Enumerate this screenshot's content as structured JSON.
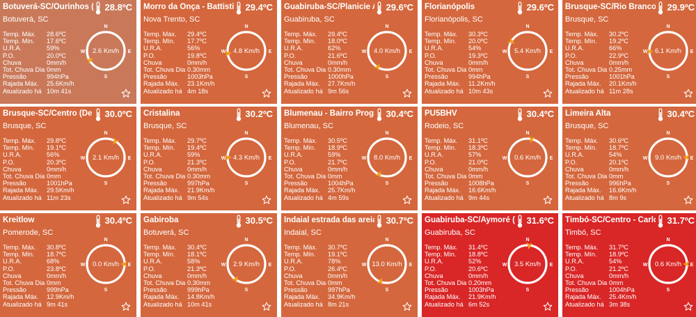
{
  "labels": {
    "temp_max": "Temp. Máx.",
    "temp_min": "Temp. Mín.",
    "ura": "U.R.A.",
    "po": "P.O.",
    "chuva": "Chuva",
    "tot_chuva": "Tot. Chuva Dia",
    "pressao": "Pressão",
    "rajada": "Rajada Máx.",
    "atualizado": "Atualizado há",
    "compass_n": "N",
    "compass_s": "S",
    "compass_w": "W",
    "compass_e": "E"
  },
  "colors": {
    "orange_dark": "#c9552f",
    "orange_light": "#d4673d",
    "red": "#d92626",
    "arrow": "#f4a21b",
    "compass_ring": "#ffffff"
  },
  "icons": {
    "thermometer": "thermometer-icon",
    "star": "star-outline-icon"
  },
  "stations": [
    {
      "name": "Botuverá-SC/Ourinhos (De",
      "location": "Botuverá, SC",
      "temp": "28.8ºC",
      "temp_max": "28.6ºC",
      "temp_min": "17.6ºC",
      "ura": "59%",
      "po": "20.0ºC",
      "chuva": "0mm/h",
      "tot_chuva": "0mm",
      "pressao": "994hPa",
      "rajada": "25.6Km/h",
      "atualizado": "10m 41s",
      "wind": "2.6 Km/h",
      "wind_dir_deg": 240,
      "color": "#c9795a"
    },
    {
      "name": "Morro da Onça - Battisti",
      "location": "Nova Trento, SC",
      "temp": "29.4ºC",
      "temp_max": "29.4ºC",
      "temp_min": "17.7ºC",
      "ura": "56%",
      "po": "19.8ºC",
      "chuva": "0mm/h",
      "tot_chuva": "0.30mm",
      "pressao": "1003hPa",
      "rajada": "23.1Km/h",
      "atualizado": "4m 18s",
      "wind": "4.8 Km/h",
      "wind_dir_deg": 262,
      "color": "#d4673d"
    },
    {
      "name": "Guabiruba-SC/Planicie Alt",
      "location": "Guabiruba, SC",
      "temp": "29.6ºC",
      "temp_max": "29.4ºC",
      "temp_min": "18.0ºC",
      "ura": "62%",
      "po": "21.6ºC",
      "chuva": "0mm/h",
      "tot_chuva": "0.30mm",
      "pressao": "1000hPa",
      "rajada": "27.7Km/h",
      "atualizado": "9m 56s",
      "wind": "4.0 Km/h",
      "wind_dir_deg": 210,
      "color": "#d4673d"
    },
    {
      "name": "Florianópolis",
      "location": "Florianópolis, SC",
      "temp": "29.6ºC",
      "temp_max": "30.3ºC",
      "temp_min": "20.0ºC",
      "ura": "54%",
      "po": "19.3ºC",
      "chuva": "0mm/h",
      "tot_chuva": "0mm",
      "pressao": "994hPa",
      "rajada": "11.2Km/h",
      "atualizado": "10m 43s",
      "wind": "5.4 Km/h",
      "wind_dir_deg": 300,
      "color": "#d4673d"
    },
    {
      "name": "Brusque-SC/Rio Branco (D",
      "location": "Brusque, SC",
      "temp": "29.9ºC",
      "temp_max": "30.2ºC",
      "temp_min": "19.2ºC",
      "ura": "66%",
      "po": "22.9ºC",
      "chuva": "0mm/h",
      "tot_chuva": "0.25mm",
      "pressao": "1001hPa",
      "rajada": "20.1Km/h",
      "atualizado": "11m 28s",
      "wind": "6.1 Km/h",
      "wind_dir_deg": 268,
      "color": "#d4673d"
    },
    {
      "name": "Brusque-SC/Centro (De Cir",
      "location": "Brusque, SC",
      "temp": "30.0ºC",
      "temp_max": "29.8ºC",
      "temp_min": "19.1ºC",
      "ura": "56%",
      "po": "20.3ºC",
      "chuva": "0mm/h",
      "tot_chuva": "0mm",
      "pressao": "1001hPa",
      "rajada": "29.5Km/h",
      "atualizado": "11m 23s",
      "wind": "2.1 Km/h",
      "wind_dir_deg": 30,
      "color": "#d4673d"
    },
    {
      "name": "Cristalina",
      "location": "Brusque, SC",
      "temp": "30.2ºC",
      "temp_max": "29.7ºC",
      "temp_min": "19.4ºC",
      "ura": "59%",
      "po": "21.3ºC",
      "chuva": "0mm/h",
      "tot_chuva": "0.30mm",
      "pressao": "997hPa",
      "rajada": "21.9Km/h",
      "atualizado": "9m 54s",
      "wind": "4.3 Km/h",
      "wind_dir_deg": 270,
      "color": "#d4673d"
    },
    {
      "name": "Blumenau - Bairro Progres",
      "location": "Blumenau, SC",
      "temp": "30.4ºC",
      "temp_max": "30.5ºC",
      "temp_min": "18.9ºC",
      "ura": "59%",
      "po": "21.7ºC",
      "chuva": "0mm/h",
      "tot_chuva": "0mm",
      "pressao": "1004hPa",
      "rajada": "25.7Km/h",
      "atualizado": "4m 59s",
      "wind": "8.0 Km/h",
      "wind_dir_deg": 205,
      "color": "#d4673d"
    },
    {
      "name": "PU5BHV",
      "location": "Rodeio, SC",
      "temp": "30.4ºC",
      "temp_max": "31.1ºC",
      "temp_min": "18.3ºC",
      "ura": "57%",
      "po": "21.0ºC",
      "chuva": "0mm/h",
      "tot_chuva": "0mm",
      "pressao": "1008hPa",
      "rajada": "16.6Km/h",
      "atualizado": "9m 44s",
      "wind": "0.6 Km/h",
      "wind_dir_deg": 12,
      "color": "#d4673d"
    },
    {
      "name": "Limeira Alta",
      "location": "Brusque, SC",
      "temp": "30.4ºC",
      "temp_max": "30.6ºC",
      "temp_min": "18.7ºC",
      "ura": "54%",
      "po": "20.1ºC",
      "chuva": "0mm/h",
      "tot_chuva": "0mm",
      "pressao": "996hPa",
      "rajada": "16.6Km/h",
      "atualizado": "8m 9s",
      "wind": "9.0 Km/h",
      "wind_dir_deg": 90,
      "color": "#d4673d"
    },
    {
      "name": "Kreitlow",
      "location": "Pomerode, SC",
      "temp": "30.4ºC",
      "temp_max": "30.8ºC",
      "temp_min": "18.7ºC",
      "ura": "68%",
      "po": "23.8ºC",
      "chuva": "0mm/h",
      "tot_chuva": "0mm",
      "pressao": "999hPa",
      "rajada": "12.9Km/h",
      "atualizado": "9m 41s",
      "wind": "0.0 Km/h",
      "wind_dir_deg": 90,
      "color": "#d4673d"
    },
    {
      "name": "Gabiroba",
      "location": "Botuverá, SC",
      "temp": "30.5ºC",
      "temp_max": "30.4ºC",
      "temp_min": "18.1ºC",
      "ura": "58%",
      "po": "21.3ºC",
      "chuva": "0mm/h",
      "tot_chuva": "0.30mm",
      "pressao": "999hPa",
      "rajada": "14.8Km/h",
      "atualizado": "10m 41s",
      "wind": "2.9 Km/h",
      "wind_dir_deg": 215,
      "color": "#d4673d"
    },
    {
      "name": "Indaial estrada das areia",
      "location": "Indaial, SC",
      "temp": "30.7ºC",
      "temp_max": "30.7ºC",
      "temp_min": "19.1ºC",
      "ura": "78%",
      "po": "26.4ºC",
      "chuva": "0mm/h",
      "tot_chuva": "0mm",
      "pressao": "997hPa",
      "rajada": "34.9Km/h",
      "atualizado": "8m 21s",
      "wind": "13.0 Km/h",
      "wind_dir_deg": 200,
      "color": "#d4673d"
    },
    {
      "name": "Guabiruba-SC/Aymoré (De",
      "location": "Guabiruba, SC",
      "temp": "31.6ºC",
      "temp_max": "31.4ºC",
      "temp_min": "18.8ºC",
      "ura": "52%",
      "po": "20.6ºC",
      "chuva": "0mm/h",
      "tot_chuva": "0.20mm",
      "pressao": "1003hPa",
      "rajada": "21.9Km/h",
      "atualizado": "6m 52s",
      "wind": "3.5 Km/h",
      "wind_dir_deg": 5,
      "color": "#d92626"
    },
    {
      "name": "Timbó-SC/Centro - Carlos",
      "location": "Timbó, SC",
      "temp": "31.7ºC",
      "temp_max": "31.7ºC",
      "temp_min": "18.9ºC",
      "ura": "54%",
      "po": "21.2ºC",
      "chuva": "0mm/h",
      "tot_chuva": "0mm",
      "pressao": "1004hPa",
      "rajada": "25.4Km/h",
      "atualizado": "3m 38s",
      "wind": "0.6 Km/h",
      "wind_dir_deg": 90,
      "color": "#d92626"
    }
  ]
}
